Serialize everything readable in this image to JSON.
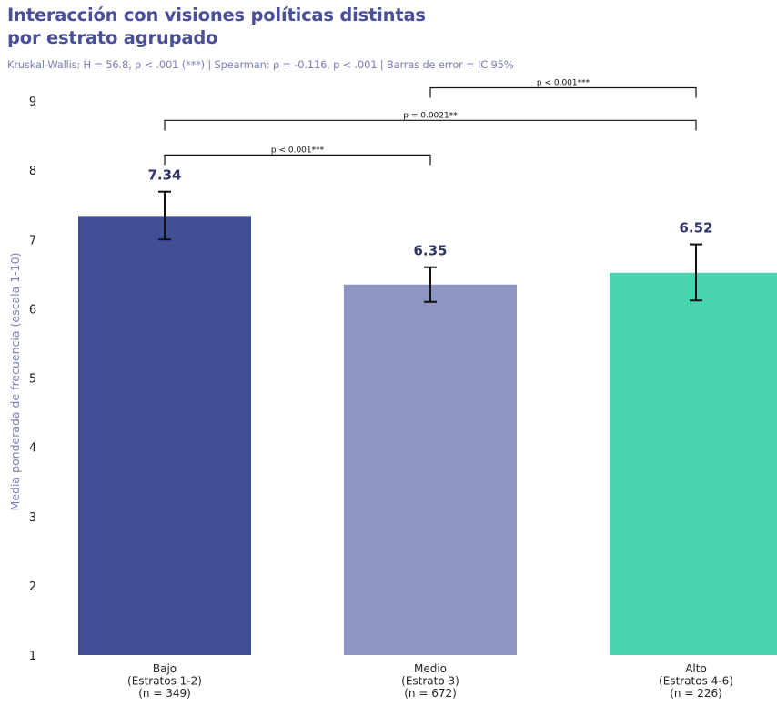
{
  "title": "Interacción con visiones políticas distintas\npor estrato agrupado",
  "subtitle": "Kruskal-Wallis: H = 56.8, p < .001 (***) | Spearman: ρ = -0.116, p < .001 | Barras de error = IC 95%",
  "colors": {
    "title": "#4a4f9a",
    "subtitle": "#7a7fb8",
    "ylabel": "#7a7fb8",
    "value_label": "#2f3566",
    "error_bar": "#111111",
    "bracket": "#111111"
  },
  "chart_data": {
    "type": "bar",
    "title": "Interacción con visiones políticas distintas por estrato agrupado",
    "xlabel": "",
    "ylabel": "Media ponderada de frecuencia (escala 1-10)",
    "ylim": [
      1,
      9
    ],
    "yticks": [
      "1",
      "2",
      "3",
      "4",
      "5",
      "6",
      "7",
      "8",
      "9"
    ],
    "grid": false,
    "categories": [
      "Bajo\n(Estratos 1-2)\n(n = 349)",
      "Medio\n(Estrato 3)\n(n = 672)",
      "Alto\n(Estratos 4-6)\n(n = 226)"
    ],
    "values": [
      7.34,
      6.35,
      6.52
    ],
    "value_labels": [
      "7.34",
      "6.35",
      "6.52"
    ],
    "ci_low": [
      7.0,
      6.1,
      6.12
    ],
    "ci_high": [
      7.69,
      6.6,
      6.93
    ],
    "bar_colors": [
      "#424e96",
      "#8d95c2",
      "#48d4ae"
    ],
    "comparisons": [
      {
        "from": 0,
        "to": 1,
        "label": "p < 0.001***",
        "y": 8.22
      },
      {
        "from": 0,
        "to": 2,
        "label": "p = 0.0021**",
        "y": 8.72
      },
      {
        "from": 1,
        "to": 2,
        "label": "p < 0.001***",
        "y": 9.19
      }
    ]
  }
}
